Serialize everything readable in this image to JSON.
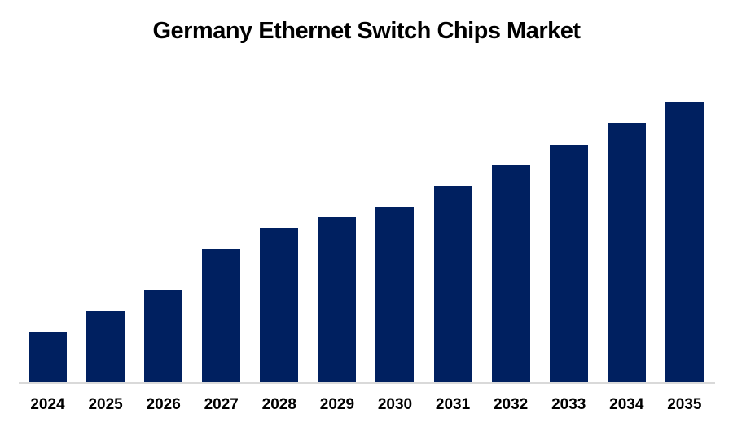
{
  "chart_data": {
    "type": "bar",
    "title": "Germany Ethernet Switch Chips Market",
    "categories": [
      "2024",
      "2025",
      "2026",
      "2027",
      "2028",
      "2029",
      "2030",
      "2031",
      "2032",
      "2033",
      "2034",
      "2035"
    ],
    "values": [
      63,
      89,
      115,
      165,
      191,
      204,
      217,
      242,
      268,
      293,
      320,
      346
    ],
    "values_unit": "relative bar height in px (no numeric y-axis shown in image)",
    "xlabel": "",
    "ylabel": "",
    "ylim": [
      0,
      371
    ],
    "grid": false,
    "legend": false,
    "y_axis_visible": false,
    "bar_color": "#002060",
    "axis_line_color": "#D9D9D9",
    "title_color": "#000000",
    "label_color": "#000000",
    "background_color": "#FFFFFF"
  }
}
